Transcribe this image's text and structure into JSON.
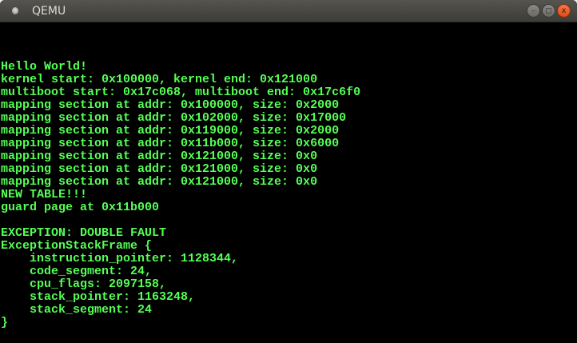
{
  "window": {
    "title": "QEMU",
    "minimize_icon": "minimize-icon",
    "maximize_icon": "maximize-icon",
    "close_icon": "close-icon"
  },
  "colors": {
    "text": "#55ff55",
    "background": "#000000"
  },
  "console": {
    "lines": [
      "Hello World!",
      "kernel start: 0x100000, kernel end: 0x121000",
      "multiboot start: 0x17c068, multiboot end: 0x17c6f0",
      "mapping section at addr: 0x100000, size: 0x2000",
      "mapping section at addr: 0x102000, size: 0x17000",
      "mapping section at addr: 0x119000, size: 0x2000",
      "mapping section at addr: 0x11b000, size: 0x6000",
      "mapping section at addr: 0x121000, size: 0x0",
      "mapping section at addr: 0x121000, size: 0x0",
      "mapping section at addr: 0x121000, size: 0x0",
      "NEW TABLE!!!",
      "guard page at 0x11b000",
      "",
      "EXCEPTION: DOUBLE FAULT",
      "ExceptionStackFrame {",
      "    instruction_pointer: 1128344,",
      "    code_segment: 24,",
      "    cpu_flags: 2097158,",
      "    stack_pointer: 1163248,",
      "    stack_segment: 24",
      "}"
    ]
  }
}
